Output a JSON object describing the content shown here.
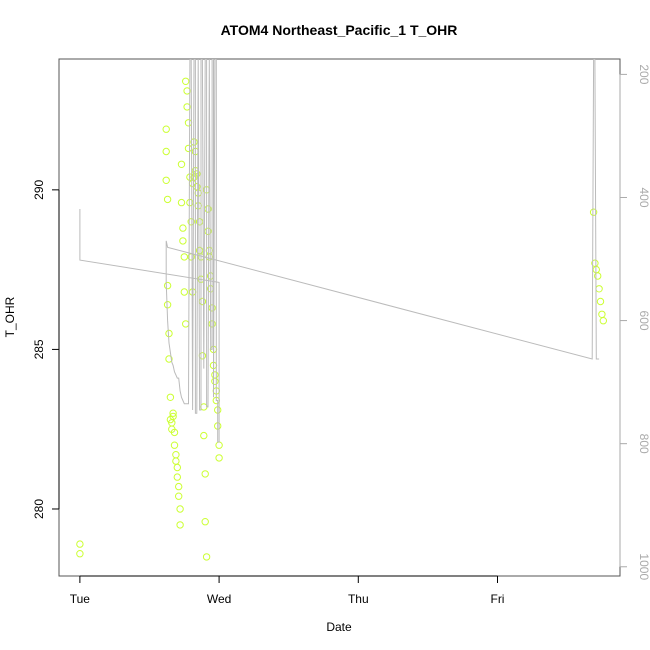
{
  "chart_data": {
    "type": "scatter",
    "title": "ATOM4 Northeast_Pacific_1 T_OHR",
    "xlabel": "Date",
    "ylabel": "T_OHR",
    "x_unit": "days from Tue 00:00",
    "xlim": [
      -0.15,
      3.88
    ],
    "x_ticks": [
      {
        "value": 0,
        "label": "Tue"
      },
      {
        "value": 1,
        "label": "Wed"
      },
      {
        "value": 2,
        "label": "Thu"
      },
      {
        "value": 3,
        "label": "Fri"
      }
    ],
    "ylim": [
      277.9,
      294.1
    ],
    "y_ticks": [
      280,
      285,
      290
    ],
    "y2_label": "",
    "y2lim": [
      1015,
      175
    ],
    "y2_ticks": [
      200,
      400,
      600,
      800,
      1000
    ],
    "grid": false,
    "colors": {
      "points": "#ccff33",
      "line": "#bbbbbb",
      "frame": "#555555",
      "right_axis": "#aaaaaa"
    },
    "series": [
      {
        "kind": "points",
        "x": [
          0.0,
          0.0,
          0.62,
          0.62,
          0.62,
          0.63,
          0.63,
          0.63,
          0.64,
          0.64,
          0.65,
          0.65,
          0.66,
          0.66,
          0.67,
          0.67,
          0.68,
          0.68,
          0.69,
          0.69,
          0.7,
          0.7,
          0.71,
          0.71,
          0.72,
          0.72,
          0.73,
          0.73,
          0.74,
          0.74,
          0.75,
          0.75,
          0.76,
          0.76,
          0.77,
          0.77,
          0.78,
          0.78,
          0.79,
          0.79,
          0.8,
          0.8,
          0.81,
          0.81,
          0.82,
          0.82,
          0.83,
          0.83,
          0.84,
          0.84,
          0.85,
          0.85,
          0.86,
          0.86,
          0.87,
          0.87,
          0.88,
          0.88,
          0.89,
          0.89,
          0.9,
          0.9,
          0.91,
          0.91,
          0.92,
          0.92,
          0.93,
          0.93,
          0.94,
          0.94,
          0.95,
          0.95,
          0.96,
          0.96,
          0.97,
          0.97,
          0.98,
          0.98,
          0.99,
          0.99,
          1.0,
          1.0,
          3.69,
          3.7,
          3.71,
          3.72,
          3.73,
          3.74,
          3.75,
          3.76
        ],
        "y": [
          278.9,
          278.6,
          291.9,
          291.2,
          290.3,
          289.7,
          287.0,
          286.4,
          285.5,
          284.7,
          283.5,
          282.8,
          282.5,
          282.7,
          283.0,
          282.9,
          282.4,
          282.0,
          281.7,
          281.5,
          281.3,
          281.0,
          280.7,
          280.4,
          280.0,
          279.5,
          290.8,
          289.6,
          288.8,
          288.4,
          287.9,
          286.8,
          285.8,
          293.4,
          293.1,
          292.6,
          292.1,
          291.3,
          290.4,
          289.6,
          289.0,
          287.9,
          286.8,
          290.2,
          290.4,
          291.5,
          291.2,
          290.6,
          290.5,
          290.1,
          289.9,
          289.5,
          289.0,
          288.1,
          287.9,
          287.2,
          286.5,
          284.8,
          283.2,
          282.3,
          281.1,
          279.6,
          278.5,
          290.0,
          289.4,
          288.7,
          288.1,
          287.9,
          287.3,
          286.9,
          286.3,
          285.8,
          285.0,
          284.5,
          284.2,
          284.0,
          283.7,
          283.4,
          283.1,
          282.6,
          282.0,
          281.6,
          289.3,
          287.7,
          287.5,
          287.3,
          286.9,
          286.5,
          286.1,
          285.9
        ]
      },
      {
        "kind": "line",
        "x": [
          0.0,
          0.0,
          1.0,
          1.0,
          0.99,
          0.99,
          0.98,
          0.98,
          0.97,
          0.96,
          0.96,
          0.95,
          0.95,
          0.94,
          0.93,
          0.93,
          0.92,
          0.91,
          0.91,
          0.9,
          0.89,
          0.89,
          0.88,
          0.87,
          0.87,
          0.86,
          0.85,
          0.85,
          0.84,
          0.83,
          0.83,
          0.82,
          0.81,
          0.81,
          0.8,
          0.79,
          0.78,
          0.78,
          0.77,
          0.76,
          0.75,
          0.75,
          0.74,
          0.73,
          0.72,
          0.71,
          0.7,
          0.69,
          0.68,
          0.67,
          0.66,
          0.65,
          0.64,
          0.63,
          0.62,
          0.62,
          0.63,
          3.68,
          3.69,
          3.7,
          3.71,
          3.72,
          3.73
        ],
        "y": [
          289.4,
          287.8,
          287.1,
          282.1,
          282.1,
          283.4,
          283.4,
          294.1,
          294.1,
          283.5,
          294.1,
          294.1,
          285.0,
          285.0,
          294.1,
          294.1,
          283.2,
          283.2,
          294.1,
          294.1,
          284.4,
          284.4,
          294.1,
          294.1,
          283.1,
          283.1,
          294.1,
          294.1,
          283.0,
          283.0,
          294.1,
          294.1,
          283.1,
          283.1,
          294.1,
          294.1,
          283.3,
          283.3,
          283.3,
          283.3,
          283.3,
          283.3,
          283.4,
          283.5,
          283.7,
          284.1,
          284.1,
          284.2,
          284.3,
          284.5,
          284.6,
          284.9,
          285.2,
          285.9,
          287.1,
          288.4,
          288.2,
          284.7,
          294.1,
          294.1,
          284.7,
          284.7,
          284.7
        ]
      }
    ]
  }
}
